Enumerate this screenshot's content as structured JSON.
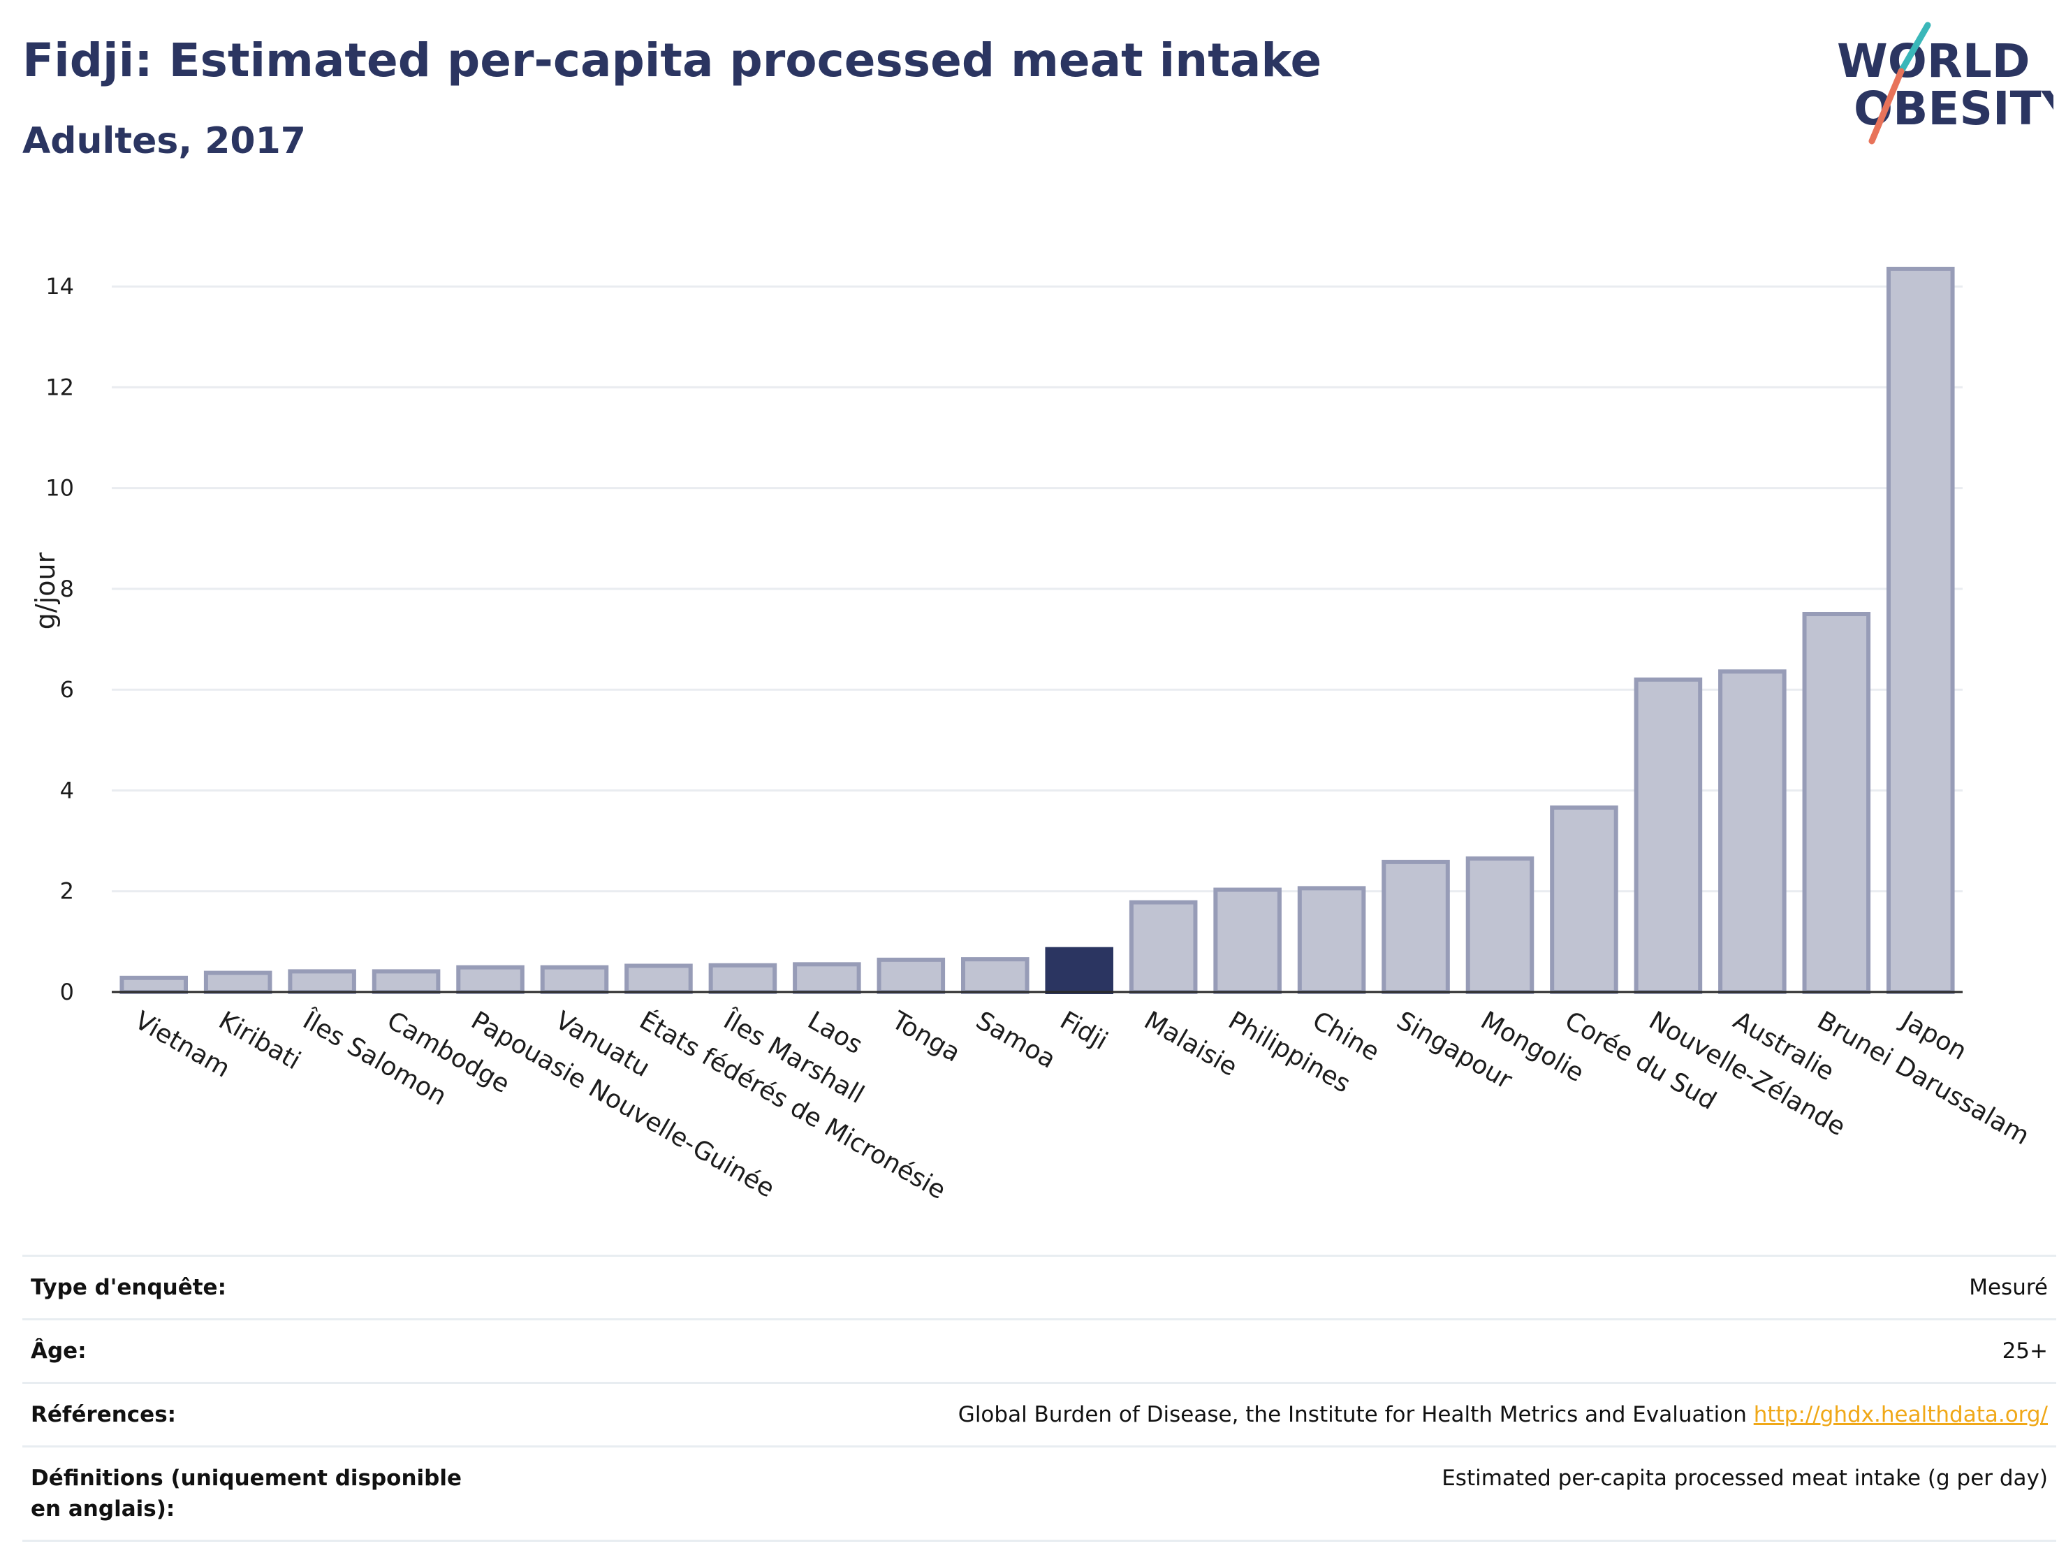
{
  "header": {
    "title": "Fidji: Estimated per-capita processed meat intake",
    "subtitle": "Adultes, 2017"
  },
  "logo": {
    "line1": "WORLD",
    "line2": "OBESITY"
  },
  "colors": {
    "highlight": "#2b3561",
    "bar_fill": "#c0c3d2",
    "bar_stroke": "#979cb7",
    "accent_red": "#e8735a",
    "accent_teal": "#3ab7b9",
    "link": "#f0a818"
  },
  "chart_data": {
    "type": "bar",
    "title": "Fidji: Estimated per-capita processed meat intake",
    "subtitle": "Adultes, 2017",
    "ylabel": "g/jour",
    "xlabel": "",
    "ylim": [
      0,
      15
    ],
    "yticks": [
      0,
      2,
      4,
      6,
      8,
      10,
      12,
      14
    ],
    "grid": true,
    "highlight": "Fidji",
    "categories": [
      "Vietnam",
      "Kiribati",
      "Îles Salomon",
      "Cambodge",
      "Papouasie Nouvelle-Guinée",
      "Vanuatu",
      "États fédérés de Micronésie",
      "Îles Marshall",
      "Laos",
      "Tonga",
      "Samoa",
      "Fidji",
      "Malaisie",
      "Philippines",
      "Chine",
      "Singapour",
      "Mongolie",
      "Corée du Sud",
      "Nouvelle-Zélande",
      "Australie",
      "Brunei Darussalam",
      "Japon"
    ],
    "values": [
      0.28,
      0.38,
      0.41,
      0.41,
      0.49,
      0.49,
      0.52,
      0.53,
      0.55,
      0.64,
      0.65,
      0.85,
      1.78,
      2.03,
      2.06,
      2.58,
      2.65,
      3.66,
      6.2,
      6.36,
      7.5,
      14.35
    ]
  },
  "info": [
    {
      "key": "Type d'enquête:",
      "value": "Mesuré"
    },
    {
      "key": "Âge:",
      "value": "25+"
    },
    {
      "key": "Références:",
      "value": "Global Burden of Disease, the Institute for Health Metrics and Evaluation",
      "link": "http://ghdx.healthdata.org/"
    },
    {
      "key": "Définitions (uniquement disponible en anglais):",
      "value": "Estimated per-capita processed meat intake (g per day)"
    }
  ]
}
